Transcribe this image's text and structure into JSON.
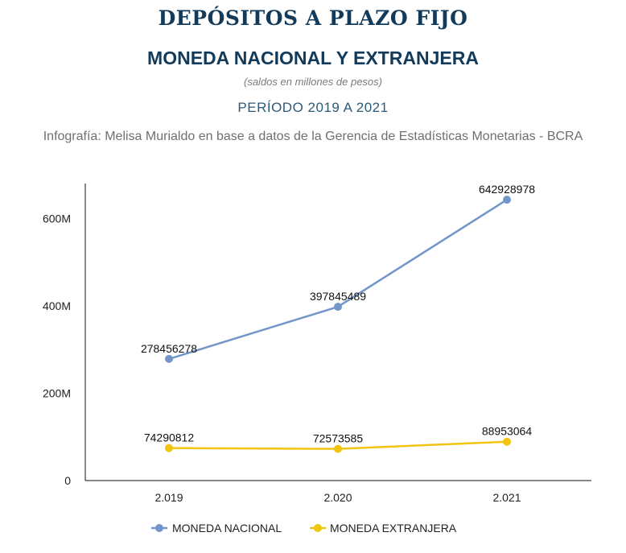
{
  "header": {
    "title": "DEPÓSITOS A PLAZO FIJO",
    "subtitle": "MONEDA NACIONAL Y EXTRANJERA",
    "note": "(saldos en millones de pesos)",
    "period": "PERÍODO 2019 A 2021",
    "source": "Infografía: Melisa Murialdo en base a datos de la Gerencia de Estadísticas Monetarias - BCRA"
  },
  "chart_data": {
    "type": "line",
    "categories": [
      "2.019",
      "2.020",
      "2.021"
    ],
    "series": [
      {
        "name": "MONEDA NACIONAL",
        "color": "#7396c9",
        "values": [
          278456278,
          397845489,
          642928978
        ]
      },
      {
        "name": "MONEDA EXTRANJERA",
        "color": "#f1c40f",
        "values": [
          74290812,
          72573585,
          88953064
        ]
      }
    ],
    "ylim": [
      0,
      680000000
    ],
    "yticks": [
      0,
      200000000,
      400000000,
      600000000
    ],
    "ytick_labels": [
      "0",
      "200M",
      "400M",
      "600M"
    ],
    "legend_position": "bottom-center",
    "grid": false
  }
}
